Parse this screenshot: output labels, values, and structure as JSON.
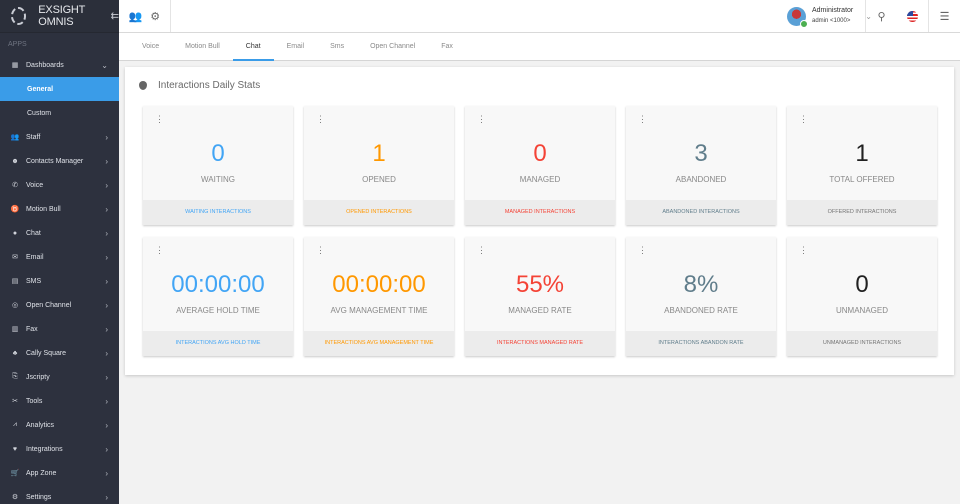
{
  "sidebar": {
    "brand": "EXSIGHT OMNIS",
    "section_label": "APPS",
    "items": [
      {
        "label": "Dashboards",
        "icon": "dashboard-icon",
        "glyph": "▦",
        "chevron": "⌄"
      },
      {
        "label": "Staff",
        "icon": "people-icon",
        "glyph": "👥",
        "chevron": "›"
      },
      {
        "label": "Contacts Manager",
        "icon": "contact-icon",
        "glyph": "☻",
        "chevron": "›"
      },
      {
        "label": "Voice",
        "icon": "phone-icon",
        "glyph": "✆",
        "chevron": "›"
      },
      {
        "label": "Motion Bull",
        "icon": "bull-icon",
        "glyph": "♉",
        "chevron": "›"
      },
      {
        "label": "Chat",
        "icon": "chat-icon",
        "glyph": "●",
        "chevron": "›"
      },
      {
        "label": "Email",
        "icon": "email-icon",
        "glyph": "✉",
        "chevron": "›"
      },
      {
        "label": "SMS",
        "icon": "sms-icon",
        "glyph": "▤",
        "chevron": "›"
      },
      {
        "label": "Open Channel",
        "icon": "open-channel-icon",
        "glyph": "◎",
        "chevron": "›"
      },
      {
        "label": "Fax",
        "icon": "fax-icon",
        "glyph": "▥",
        "chevron": "›"
      },
      {
        "label": "Cally Square",
        "icon": "hierarchy-icon",
        "glyph": "♣",
        "chevron": "›"
      },
      {
        "label": "Jscripty",
        "icon": "script-icon",
        "glyph": "⎘",
        "chevron": "›"
      },
      {
        "label": "Tools",
        "icon": "tools-icon",
        "glyph": "✂",
        "chevron": "›"
      },
      {
        "label": "Analytics",
        "icon": "analytics-icon",
        "glyph": "⩘",
        "chevron": "›"
      },
      {
        "label": "Integrations",
        "icon": "heart-icon",
        "glyph": "♥",
        "chevron": "›"
      },
      {
        "label": "App Zone",
        "icon": "cart-icon",
        "glyph": "🛒",
        "chevron": "›"
      },
      {
        "label": "Settings",
        "icon": "settings-icon",
        "glyph": "⚙",
        "chevron": "›"
      }
    ],
    "sub_items": [
      {
        "label": "General",
        "active": true
      },
      {
        "label": "Custom",
        "active": false
      }
    ]
  },
  "topbar": {
    "user_name": "Administrator",
    "user_sub": "admin <1000>",
    "caret": "⌄",
    "search_glyph": "⚲",
    "menu_glyph": "☰",
    "people_glyph": "👥",
    "gear_glyph": "⚙"
  },
  "tabs": [
    {
      "label": "Voice",
      "active": false
    },
    {
      "label": "Motion Bull",
      "active": false
    },
    {
      "label": "Chat",
      "active": true
    },
    {
      "label": "Email",
      "active": false
    },
    {
      "label": "Sms",
      "active": false
    },
    {
      "label": "Open Channel",
      "active": false
    },
    {
      "label": "Fax",
      "active": false
    }
  ],
  "panel": {
    "title": "Interactions Daily Stats",
    "cards": [
      {
        "value": "0",
        "label": "WAITING",
        "footer": "WAITING INTERACTIONS",
        "color": "#42a5f5"
      },
      {
        "value": "1",
        "label": "OPENED",
        "footer": "OPENED INTERACTIONS",
        "color": "#ff9800"
      },
      {
        "value": "0",
        "label": "MANAGED",
        "footer": "MANAGED INTERACTIONS",
        "color": "#f44336"
      },
      {
        "value": "3",
        "label": "ABANDONED",
        "footer": "ABANDONED INTERACTIONS",
        "color": "#607d8b"
      },
      {
        "value": "1",
        "label": "TOTAL OFFERED",
        "footer": "OFFERED INTERACTIONS",
        "color": "#212121"
      },
      {
        "value": "00:00:00",
        "label": "AVERAGE HOLD TIME",
        "footer": "INTERACTIONS AVG HOLD TIME",
        "color": "#42a5f5"
      },
      {
        "value": "00:00:00",
        "label": "AVG MANAGEMENT TIME",
        "footer": "INTERACTIONS AVG MANAGEMENT TIME",
        "color": "#ff9800"
      },
      {
        "value": "55%",
        "label": "MANAGED RATE",
        "footer": "INTERACTIONS MANAGED RATE",
        "color": "#f44336"
      },
      {
        "value": "8%",
        "label": "ABANDONED RATE",
        "footer": "INTERACTIONS ABANDON RATE",
        "color": "#607d8b"
      },
      {
        "value": "0",
        "label": "UNMANAGED",
        "footer": "UNMANAGED INTERACTIONS",
        "color": "#212121"
      }
    ]
  },
  "colors": {
    "sidebar_bg": "#2d313e",
    "accent": "#3a9ce8",
    "footer_grey_text": "#757575"
  }
}
